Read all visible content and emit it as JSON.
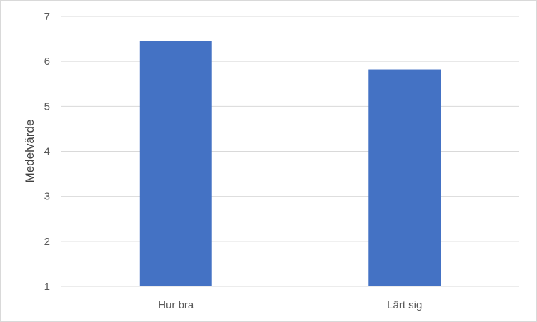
{
  "chart_data": {
    "type": "bar",
    "categories": [
      "Hur bra",
      "Lärt sig"
    ],
    "values": [
      6.45,
      5.82
    ],
    "title": "",
    "xlabel": "",
    "ylabel": "Medelvärde",
    "ylim": [
      1,
      7
    ],
    "yticks": [
      "1",
      "2",
      "3",
      "4",
      "5",
      "6",
      "7"
    ],
    "grid": true,
    "legend": "none",
    "bar_color": "#4472c4",
    "grid_color": "#d9d9d9"
  }
}
